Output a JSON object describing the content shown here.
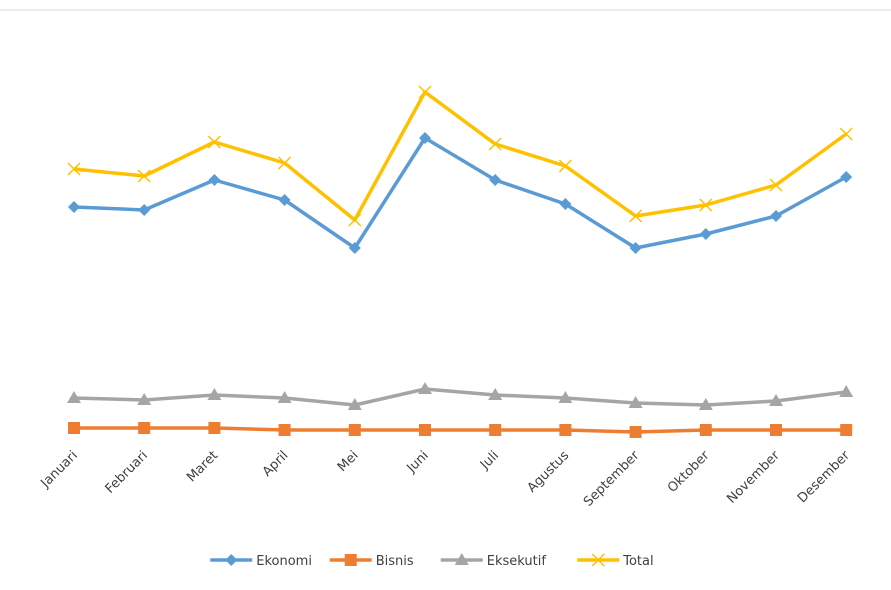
{
  "chart_data": {
    "type": "line",
    "categories": [
      "Januari",
      "Februari",
      "Maret",
      "April",
      "Mei",
      "Juni",
      "Juli",
      "Agustus",
      "September",
      "Oktober",
      "November",
      "Desember"
    ],
    "series": [
      {
        "name": "Ekonomi",
        "color": "#5b9bd5",
        "marker": "diamond",
        "values": [
          233,
          230,
          260,
          240,
          192,
          302,
          260,
          236,
          192,
          206,
          224,
          263
        ]
      },
      {
        "name": "Bisnis",
        "color": "#ed7d31",
        "marker": "square",
        "values": [
          12,
          12,
          12,
          10,
          10,
          10,
          10,
          10,
          8,
          10,
          10,
          10
        ]
      },
      {
        "name": "Eksekutif",
        "color": "#a5a5a5",
        "marker": "triangle",
        "values": [
          42,
          40,
          45,
          42,
          35,
          51,
          45,
          42,
          37,
          35,
          39,
          48
        ]
      },
      {
        "name": "Total",
        "color": "#ffc000",
        "marker": "x",
        "values": [
          271,
          264,
          298,
          277,
          220,
          348,
          296,
          274,
          224,
          235,
          255,
          306
        ]
      }
    ],
    "ylim": [
      0,
      380
    ],
    "legend": "bottom"
  }
}
